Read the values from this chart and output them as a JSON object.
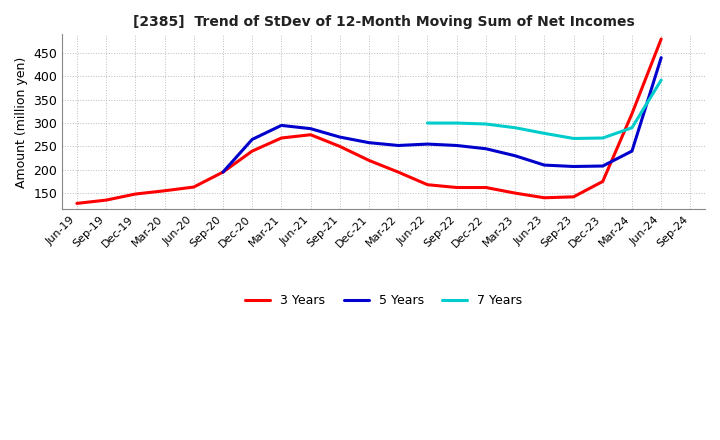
{
  "title": "[2385]  Trend of StDev of 12-Month Moving Sum of Net Incomes",
  "ylabel": "Amount (million yen)",
  "ylim": [
    115,
    490
  ],
  "yticks": [
    150,
    200,
    250,
    300,
    350,
    400,
    450
  ],
  "background_color": "#ffffff",
  "grid_color": "#bbbbbb",
  "lines": {
    "3 Years": {
      "color": "#ff0000",
      "data": [
        [
          "Jun-19",
          128
        ],
        [
          "Sep-19",
          135
        ],
        [
          "Dec-19",
          148
        ],
        [
          "Mar-20",
          155
        ],
        [
          "Jun-20",
          163
        ],
        [
          "Sep-20",
          195
        ],
        [
          "Dec-20",
          240
        ],
        [
          "Mar-21",
          268
        ],
        [
          "Jun-21",
          275
        ],
        [
          "Sep-21",
          250
        ],
        [
          "Dec-21",
          220
        ],
        [
          "Mar-22",
          195
        ],
        [
          "Jun-22",
          168
        ],
        [
          "Sep-22",
          162
        ],
        [
          "Dec-22",
          162
        ],
        [
          "Mar-23",
          150
        ],
        [
          "Jun-23",
          140
        ],
        [
          "Sep-23",
          142
        ],
        [
          "Dec-23",
          175
        ],
        [
          "Mar-24",
          320
        ],
        [
          "Jun-24",
          480
        ]
      ]
    },
    "5 Years": {
      "color": "#0000cc",
      "data": [
        [
          "Sep-20",
          195
        ],
        [
          "Dec-20",
          265
        ],
        [
          "Mar-21",
          295
        ],
        [
          "Jun-21",
          288
        ],
        [
          "Sep-21",
          270
        ],
        [
          "Dec-21",
          258
        ],
        [
          "Mar-22",
          252
        ],
        [
          "Jun-22",
          255
        ],
        [
          "Sep-22",
          252
        ],
        [
          "Dec-22",
          245
        ],
        [
          "Mar-23",
          230
        ],
        [
          "Jun-23",
          210
        ],
        [
          "Sep-23",
          207
        ],
        [
          "Dec-23",
          208
        ],
        [
          "Mar-24",
          240
        ],
        [
          "Jun-24",
          440
        ]
      ]
    },
    "7 Years": {
      "color": "#00cccc",
      "data": [
        [
          "Jun-22",
          300
        ],
        [
          "Sep-22",
          300
        ],
        [
          "Dec-22",
          298
        ],
        [
          "Mar-23",
          290
        ],
        [
          "Jun-23",
          278
        ],
        [
          "Sep-23",
          267
        ],
        [
          "Dec-23",
          268
        ],
        [
          "Mar-24",
          290
        ],
        [
          "Jun-24",
          392
        ]
      ]
    },
    "10 Years": {
      "color": "#008800",
      "data": []
    }
  },
  "xtick_labels": [
    "Jun-19",
    "Sep-19",
    "Dec-19",
    "Mar-20",
    "Jun-20",
    "Sep-20",
    "Dec-20",
    "Mar-21",
    "Jun-21",
    "Sep-21",
    "Dec-21",
    "Mar-22",
    "Jun-22",
    "Sep-22",
    "Dec-22",
    "Mar-23",
    "Jun-23",
    "Sep-23",
    "Dec-23",
    "Mar-24",
    "Jun-24",
    "Sep-24"
  ]
}
